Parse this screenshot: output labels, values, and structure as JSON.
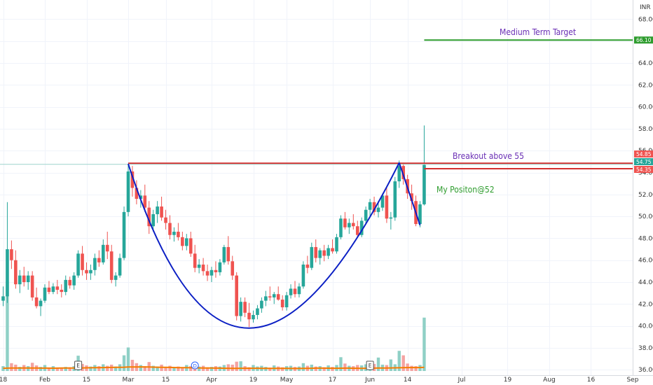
{
  "chart_data": {
    "type": "candlestick",
    "currency": "INR",
    "ylim": [
      35.5,
      69.5
    ],
    "y_ticks": [
      "68.00",
      "66.00",
      "64.00",
      "62.00",
      "60.00",
      "58.00",
      "56.00",
      "54.00",
      "52.00",
      "50.00",
      "48.00",
      "46.00",
      "44.00",
      "42.00",
      "40.00",
      "38.00",
      "36.00"
    ],
    "x_ticks": [
      {
        "label": "18",
        "i": 0
      },
      {
        "label": "Feb",
        "i": 10
      },
      {
        "label": "15",
        "i": 20
      },
      {
        "label": "Mar",
        "i": 30
      },
      {
        "label": "15",
        "i": 39
      },
      {
        "label": "Apr",
        "i": 50
      },
      {
        "label": "19",
        "i": 60
      },
      {
        "label": "May",
        "i": 68
      },
      {
        "label": "17",
        "i": 79
      },
      {
        "label": "Jun",
        "i": 88
      },
      {
        "label": "14",
        "i": 97
      },
      {
        "label": "Jul",
        "i": 110
      },
      {
        "label": "19",
        "i": 121
      },
      {
        "label": "Aug",
        "i": 131
      },
      {
        "label": "16",
        "i": 141
      },
      {
        "label": "Sep",
        "i": 151
      }
    ],
    "ohlc": [
      [
        42.3,
        43.6,
        41.8,
        42.7
      ],
      [
        42.7,
        51.3,
        42.1,
        47.0
      ],
      [
        47.0,
        47.8,
        45.2,
        46.0
      ],
      [
        46.0,
        46.9,
        43.4,
        43.8
      ],
      [
        43.8,
        45.1,
        43.0,
        44.6
      ],
      [
        44.6,
        45.4,
        43.6,
        44.0
      ],
      [
        44.0,
        45.0,
        43.3,
        44.6
      ],
      [
        44.6,
        45.0,
        42.3,
        42.6
      ],
      [
        42.6,
        43.5,
        41.6,
        41.8
      ],
      [
        41.8,
        42.5,
        40.9,
        42.3
      ],
      [
        42.3,
        43.8,
        42.1,
        43.5
      ],
      [
        43.5,
        44.1,
        42.9,
        43.1
      ],
      [
        43.1,
        43.9,
        42.9,
        43.6
      ],
      [
        43.6,
        44.2,
        42.9,
        43.3
      ],
      [
        43.3,
        43.8,
        42.6,
        43.1
      ],
      [
        43.1,
        44.6,
        42.8,
        44.2
      ],
      [
        44.2,
        44.5,
        43.4,
        43.7
      ],
      [
        43.7,
        44.9,
        43.3,
        44.6
      ],
      [
        44.6,
        46.9,
        44.4,
        46.6
      ],
      [
        46.6,
        47.3,
        44.6,
        45.1
      ],
      [
        45.1,
        45.8,
        44.2,
        44.8
      ],
      [
        44.8,
        45.6,
        44.2,
        45.1
      ],
      [
        45.1,
        46.6,
        44.6,
        46.2
      ],
      [
        46.2,
        46.9,
        45.4,
        45.8
      ],
      [
        45.8,
        47.9,
        45.6,
        47.4
      ],
      [
        47.4,
        48.6,
        46.1,
        46.8
      ],
      [
        46.8,
        47.4,
        43.9,
        44.2
      ],
      [
        44.2,
        44.9,
        43.6,
        44.6
      ],
      [
        44.6,
        46.6,
        44.4,
        46.2
      ],
      [
        46.2,
        50.9,
        46.0,
        50.4
      ],
      [
        50.4,
        54.8,
        50.0,
        54.1
      ],
      [
        54.1,
        54.6,
        51.8,
        52.6
      ],
      [
        52.6,
        53.3,
        51.1,
        51.6
      ],
      [
        51.6,
        52.4,
        50.8,
        51.9
      ],
      [
        51.9,
        52.9,
        50.4,
        50.8
      ],
      [
        50.8,
        51.4,
        48.4,
        49.1
      ],
      [
        49.1,
        50.6,
        48.6,
        50.2
      ],
      [
        50.2,
        51.4,
        49.4,
        50.9
      ],
      [
        50.9,
        51.8,
        49.6,
        49.9
      ],
      [
        49.9,
        50.6,
        48.8,
        49.4
      ],
      [
        49.4,
        50.1,
        47.9,
        48.3
      ],
      [
        48.3,
        49.0,
        47.7,
        48.6
      ],
      [
        48.6,
        49.4,
        47.8,
        48.1
      ],
      [
        48.1,
        48.6,
        46.9,
        47.3
      ],
      [
        47.3,
        48.4,
        46.9,
        48.0
      ],
      [
        48.0,
        48.6,
        46.3,
        46.6
      ],
      [
        46.6,
        47.4,
        44.9,
        45.3
      ],
      [
        45.3,
        46.1,
        44.8,
        45.6
      ],
      [
        45.6,
        46.2,
        44.6,
        45.0
      ],
      [
        45.0,
        45.6,
        44.1,
        44.6
      ],
      [
        44.6,
        45.4,
        44.0,
        45.1
      ],
      [
        45.1,
        45.9,
        44.4,
        44.9
      ],
      [
        44.9,
        46.1,
        44.6,
        45.8
      ],
      [
        45.8,
        47.4,
        45.6,
        47.2
      ],
      [
        47.2,
        48.2,
        45.6,
        45.9
      ],
      [
        45.9,
        46.4,
        44.2,
        44.6
      ],
      [
        44.6,
        44.9,
        40.5,
        40.9
      ],
      [
        40.9,
        42.6,
        40.4,
        42.2
      ],
      [
        42.2,
        42.6,
        40.8,
        41.2
      ],
      [
        41.2,
        42.1,
        39.9,
        40.6
      ],
      [
        40.6,
        41.4,
        40.3,
        41.0
      ],
      [
        41.0,
        41.9,
        40.6,
        41.6
      ],
      [
        41.6,
        42.6,
        41.2,
        42.3
      ],
      [
        42.3,
        43.2,
        41.8,
        42.7
      ],
      [
        42.7,
        43.6,
        42.3,
        42.6
      ],
      [
        42.6,
        43.1,
        42.0,
        42.9
      ],
      [
        42.9,
        43.6,
        42.3,
        42.4
      ],
      [
        42.4,
        42.8,
        41.4,
        41.7
      ],
      [
        41.7,
        43.1,
        41.4,
        42.8
      ],
      [
        42.8,
        43.8,
        42.5,
        43.4
      ],
      [
        43.4,
        44.1,
        42.6,
        42.9
      ],
      [
        42.9,
        43.9,
        42.6,
        43.6
      ],
      [
        43.6,
        45.9,
        43.4,
        45.6
      ],
      [
        45.6,
        46.4,
        44.8,
        45.3
      ],
      [
        45.3,
        47.6,
        45.1,
        47.2
      ],
      [
        47.2,
        47.9,
        45.8,
        46.2
      ],
      [
        46.2,
        47.1,
        45.6,
        46.9
      ],
      [
        46.9,
        47.4,
        45.9,
        46.4
      ],
      [
        46.4,
        47.4,
        46.1,
        47.1
      ],
      [
        47.1,
        47.9,
        46.6,
        46.8
      ],
      [
        46.8,
        48.4,
        46.6,
        48.1
      ],
      [
        48.1,
        50.1,
        47.9,
        49.8
      ],
      [
        49.8,
        50.4,
        48.8,
        49.0
      ],
      [
        49.0,
        49.8,
        48.4,
        49.4
      ],
      [
        49.4,
        50.2,
        48.8,
        49.1
      ],
      [
        49.1,
        49.6,
        48.1,
        48.3
      ],
      [
        48.3,
        49.9,
        48.1,
        49.6
      ],
      [
        49.6,
        50.9,
        49.3,
        50.6
      ],
      [
        50.6,
        51.6,
        49.9,
        51.3
      ],
      [
        51.3,
        51.8,
        50.1,
        50.4
      ],
      [
        50.4,
        51.4,
        49.9,
        50.8
      ],
      [
        50.8,
        52.1,
        50.5,
        51.9
      ],
      [
        51.9,
        52.6,
        49.4,
        49.8
      ],
      [
        49.8,
        50.4,
        48.8,
        49.9
      ],
      [
        49.9,
        53.6,
        49.6,
        53.2
      ],
      [
        53.2,
        55.1,
        52.6,
        54.6
      ],
      [
        54.6,
        54.9,
        52.9,
        53.4
      ],
      [
        53.4,
        53.8,
        51.6,
        52.1
      ],
      [
        52.1,
        52.9,
        50.6,
        51.4
      ],
      [
        51.4,
        51.9,
        49.1,
        49.3
      ],
      [
        49.3,
        51.4,
        49.0,
        51.1
      ],
      [
        51.1,
        58.3,
        51.0,
        54.7
      ]
    ],
    "volume": [
      1.3,
      24,
      2.1,
      1.7,
      1.1,
      1.6,
      1.3,
      2.2,
      1.5,
      1.1,
      1.6,
      0.9,
      1.3,
      0.8,
      0.9,
      1.1,
      1.0,
      1.3,
      4.1,
      1.9,
      1.5,
      1.2,
      1.6,
      1.3,
      1.8,
      1.4,
      1.7,
      1.2,
      1.8,
      4.2,
      6.3,
      3.0,
      2.1,
      1.6,
      1.3,
      2.4,
      1.4,
      1.2,
      1.7,
      1.1,
      1.4,
      0.9,
      1.2,
      1.0,
      1.6,
      1.3,
      1.9,
      1.2,
      1.4,
      1.0,
      1.1,
      1.3,
      1.2,
      1.6,
      1.8,
      1.7,
      2.5,
      2.6,
      1.3,
      1.0,
      1.6,
      1.2,
      1.4,
      1.1,
      0.9,
      1.5,
      1.2,
      1.0,
      1.3,
      1.4,
      1.1,
      1.2,
      2.1,
      1.4,
      1.7,
      1.2,
      1.3,
      1.0,
      1.5,
      1.1,
      1.6,
      3.7,
      2.0,
      1.4,
      1.3,
      1.6,
      1.5,
      1.8,
      2.2,
      1.9,
      3.6,
      1.7,
      1.6,
      3.1,
      1.8,
      5.4,
      4.2,
      2.0,
      1.4,
      1.3,
      1.6,
      14.3
    ],
    "volume_scale_max": 24,
    "volume_ma": [
      0.74,
      0.76,
      0.79,
      0.78,
      0.8,
      0.82,
      0.81,
      0.79,
      0.78,
      0.77,
      0.77,
      0.76,
      0.75,
      0.77,
      0.79,
      0.8,
      0.81,
      0.8,
      0.81,
      0.83,
      0.84,
      0.86,
      0.88,
      0.9,
      0.92,
      0.94,
      0.95,
      0.97,
      0.99,
      1.02,
      1.06,
      1.08,
      1.09,
      1.1,
      1.09,
      1.07,
      1.04,
      1.01,
      0.99,
      0.97,
      0.96,
      0.93,
      0.9,
      0.89,
      0.88,
      0.86,
      0.84,
      0.82,
      0.8,
      0.79,
      0.78,
      0.77,
      0.76,
      0.74,
      0.73,
      0.72,
      0.72,
      0.73,
      0.74,
      0.75,
      0.74,
      0.73,
      0.72,
      0.71,
      0.7,
      0.7,
      0.69,
      0.69,
      0.69,
      0.68,
      0.68,
      0.68,
      0.7,
      0.72,
      0.74,
      0.76,
      0.77,
      0.76,
      0.75,
      0.74,
      0.73,
      0.75,
      0.77,
      0.76,
      0.74,
      0.73,
      0.72,
      0.73,
      0.75,
      0.77,
      0.79,
      0.8,
      0.81,
      0.82,
      0.84,
      0.87,
      0.9,
      0.92,
      0.93,
      0.92,
      0.91,
      1.0
    ],
    "events": [
      {
        "label": "E",
        "i": 18
      },
      {
        "label": "D",
        "i": 46
      },
      {
        "label": "E",
        "i": 88
      }
    ],
    "colors": {
      "up": "#26a69a",
      "down": "#ef5350",
      "vol_up": "#8fd0c6",
      "vol_down": "#f4a3a2",
      "vol_ma": "#f57c00",
      "cup": "#0b1fc4",
      "resistance": "#d32f2f",
      "target": "#2e9c2e",
      "grid": "#f0f3fa"
    },
    "price_tags": [
      {
        "label": "66.10",
        "value": 66.1,
        "color": "#2e9c2e"
      },
      {
        "label": "54.85",
        "value": 54.85,
        "color": "#ef5350"
      },
      {
        "label": "54.75",
        "value": 54.75,
        "color": "#26a69a"
      },
      {
        "label": "54.35",
        "value": 54.35,
        "color": "#ef5350"
      }
    ],
    "annotations": [
      {
        "text": "Medium Term Target",
        "color": "#6a2fb5"
      },
      {
        "text": "Breakout above 55",
        "color": "#6a2fb5"
      },
      {
        "text": "My Positon@52",
        "color": "#2e9c2e"
      }
    ],
    "lines": {
      "target_y": 66.1,
      "resistance_y": [
        54.85,
        54.35
      ],
      "cup": {
        "left": {
          "i": 30,
          "y": 54.8
        },
        "bottom": {
          "i": 59,
          "y": 39.8
        },
        "right": {
          "i": 95,
          "y": 54.9
        }
      },
      "handle_end": {
        "i": 100,
        "y": 49.2
      }
    },
    "grid": true
  }
}
